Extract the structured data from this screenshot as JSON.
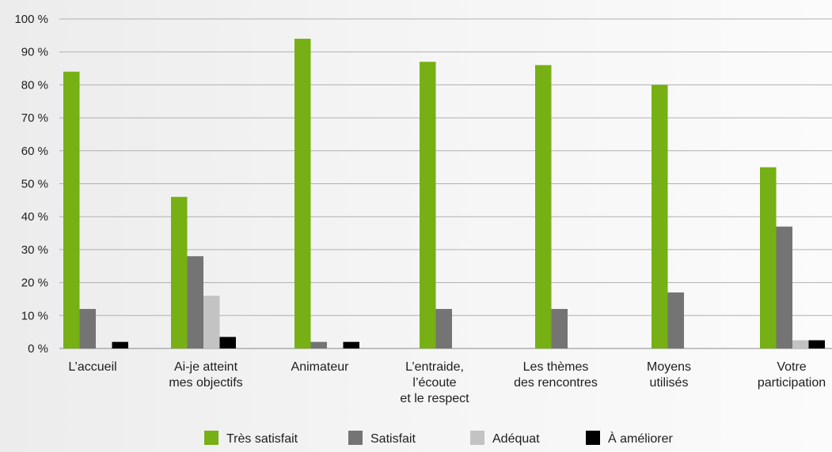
{
  "chart_data": {
    "type": "bar",
    "ylim": [
      0,
      100
    ],
    "yticks": [
      0,
      10,
      20,
      30,
      40,
      50,
      60,
      70,
      80,
      90,
      100
    ],
    "ytick_labels": [
      "0 %",
      "10 %",
      "20 %",
      "30 %",
      "40 %",
      "50 %",
      "60 %",
      "70 %",
      "80 %",
      "90 %",
      "100 %"
    ],
    "grid": true,
    "legend_position": "bottom",
    "categories": [
      [
        "L’accueil"
      ],
      [
        "Ai-je atteint",
        "mes objectifs"
      ],
      [
        "Animateur"
      ],
      [
        "L’entraide,",
        "l’écoute",
        "et le respect"
      ],
      [
        "Les thèmes",
        "des rencontres"
      ],
      [
        "Moyens",
        "utilisés"
      ],
      [
        "Votre",
        "participation"
      ]
    ],
    "series": [
      {
        "name": "Très satisfait",
        "color": "#76b015",
        "values": [
          84,
          46,
          94,
          87,
          86,
          80,
          55
        ]
      },
      {
        "name": "Satisfait",
        "color": "#747474",
        "values": [
          12,
          28,
          2,
          12,
          12,
          17,
          37
        ]
      },
      {
        "name": "Adéquat",
        "color": "#c3c3c3",
        "values": [
          0,
          16,
          0,
          0,
          0,
          0,
          2.5
        ]
      },
      {
        "name": "À améliorer",
        "color": "#000000",
        "values": [
          2,
          3.5,
          2,
          0,
          0,
          0,
          2.5
        ]
      }
    ]
  }
}
